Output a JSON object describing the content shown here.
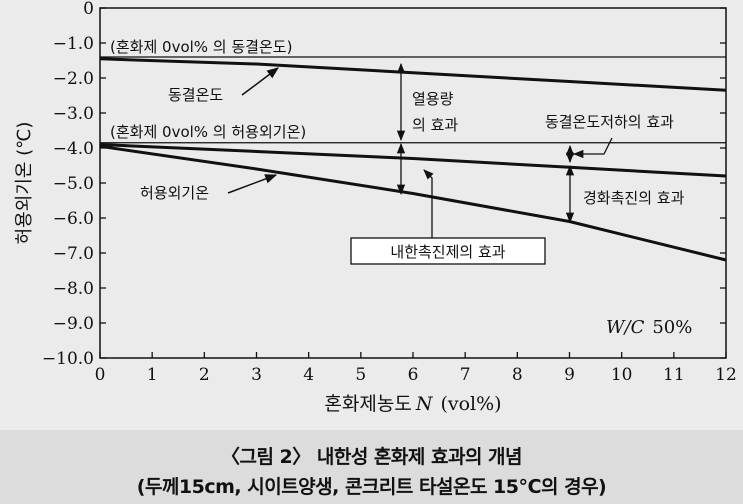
{
  "chart_data": {
    "type": "line",
    "xlabel_prefix": "혼화제농도",
    "xlabel_var": "N",
    "xlabel_unit": "(vol%)",
    "ylabel": "허용외기온 (℃)",
    "xlim": [
      0,
      12
    ],
    "ylim": [
      -10.0,
      0
    ],
    "x_ticks": [
      "0",
      "1",
      "2",
      "3",
      "4",
      "5",
      "6",
      "7",
      "8",
      "9",
      "10",
      "11",
      "12"
    ],
    "y_ticks": [
      {
        "v": 0,
        "label": "0"
      },
      {
        "v": -1,
        "label": "−1.0"
      },
      {
        "v": -2,
        "label": "−2.0"
      },
      {
        "v": -3,
        "label": "−3.0"
      },
      {
        "v": -4,
        "label": "−4.0"
      },
      {
        "v": -5,
        "label": "−5.0"
      },
      {
        "v": -6,
        "label": "−6.0"
      },
      {
        "v": -7,
        "label": "−7.0"
      },
      {
        "v": -8,
        "label": "−8.0"
      },
      {
        "v": -9,
        "label": "−9.0"
      },
      {
        "v": -10,
        "label": "−10.0"
      }
    ],
    "reference_lines": [
      {
        "key": "freeze_ref",
        "y": -1.4,
        "label": "(혼화제 0vol% 의 동결온도)"
      },
      {
        "key": "allow_ref",
        "y": -3.85,
        "label": "(혼화제 0vol% 의 허용외기온)"
      }
    ],
    "series": [
      {
        "key": "freeze",
        "name": "동결온도",
        "x": [
          0,
          3,
          6,
          9,
          12
        ],
        "y": [
          -1.45,
          -1.6,
          -1.85,
          -2.1,
          -2.35
        ]
      },
      {
        "key": "upper",
        "name": "",
        "x": [
          0,
          3,
          6,
          9,
          12
        ],
        "y": [
          -3.9,
          -4.1,
          -4.3,
          -4.55,
          -4.8
        ]
      },
      {
        "key": "allow",
        "name": "허용외기온",
        "x": [
          0,
          3,
          6,
          9,
          12
        ],
        "y": [
          -3.95,
          -4.6,
          -5.3,
          -6.1,
          -7.2
        ]
      }
    ],
    "annotations": {
      "freeze_label": "동결온도",
      "allow_label": "허용외기온",
      "solubility_line1": "열용량",
      "solubility_line2": "의 효과",
      "freeze_drop": "동결온도저하의 효과",
      "hardening": "경화촉진의 효과",
      "antifreeze_box": "내한촉진제의 효과",
      "wc_var": "W/C",
      "wc_value": "50%"
    },
    "grid": false,
    "colors": {
      "line": "#111111",
      "plot_bg": "#ebebeb"
    }
  },
  "caption": {
    "line1": "〈그림 2〉 내한성 혼화제 효과의 개념",
    "line2": "(두께15cm, 시이트양생, 콘크리트 타설온도 15℃의 경우)"
  }
}
